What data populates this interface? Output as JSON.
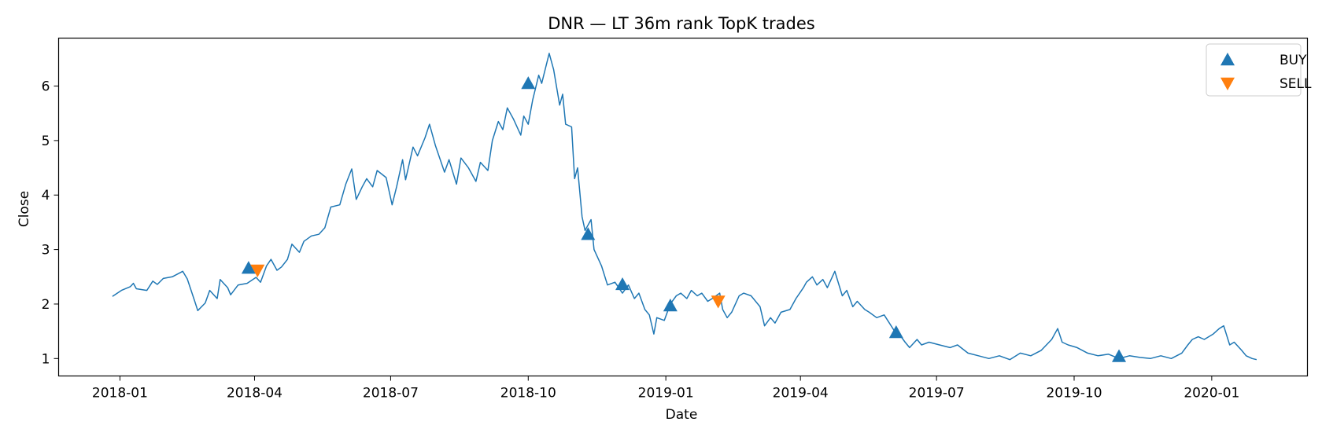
{
  "chart_data": {
    "type": "line",
    "title": "DNR — LT 36m rank TopK trades",
    "xlabel": "Date",
    "ylabel": "Close",
    "xlim": [
      "2017-11-21",
      "2020-03-05"
    ],
    "ylim": [
      0.68,
      6.88
    ],
    "x_ticks": [
      "2018-01",
      "2018-04",
      "2018-07",
      "2018-10",
      "2019-01",
      "2019-04",
      "2019-07",
      "2019-10",
      "2020-01"
    ],
    "y_ticks": [
      1,
      2,
      3,
      4,
      5,
      6
    ],
    "grid": false,
    "legend": {
      "position": "top-right",
      "entries": [
        "BUY",
        "SELL"
      ]
    },
    "colors": {
      "line": "#1f77b4",
      "buy": "#1f77b4",
      "sell": "#ff7f0e"
    },
    "series": [
      {
        "points": [
          [
            "2017-12-27",
            2.14
          ],
          [
            "2018-01-02",
            2.25
          ],
          [
            "2018-01-08",
            2.32
          ],
          [
            "2018-01-10",
            2.38
          ],
          [
            "2018-01-12",
            2.28
          ],
          [
            "2018-01-19",
            2.25
          ],
          [
            "2018-01-23",
            2.42
          ],
          [
            "2018-01-26",
            2.36
          ],
          [
            "2018-01-30",
            2.47
          ],
          [
            "2018-02-05",
            2.5
          ],
          [
            "2018-02-12",
            2.6
          ],
          [
            "2018-02-15",
            2.46
          ],
          [
            "2018-02-20",
            2.05
          ],
          [
            "2018-02-22",
            1.88
          ],
          [
            "2018-02-27",
            2.02
          ],
          [
            "2018-03-02",
            2.25
          ],
          [
            "2018-03-07",
            2.1
          ],
          [
            "2018-03-09",
            2.45
          ],
          [
            "2018-03-14",
            2.3
          ],
          [
            "2018-03-16",
            2.17
          ],
          [
            "2018-03-21",
            2.35
          ],
          [
            "2018-03-27",
            2.38
          ],
          [
            "2018-04-02",
            2.49
          ],
          [
            "2018-04-05",
            2.4
          ],
          [
            "2018-04-09",
            2.7
          ],
          [
            "2018-04-12",
            2.82
          ],
          [
            "2018-04-16",
            2.62
          ],
          [
            "2018-04-19",
            2.68
          ],
          [
            "2018-04-23",
            2.82
          ],
          [
            "2018-04-26",
            3.1
          ],
          [
            "2018-05-01",
            2.95
          ],
          [
            "2018-05-04",
            3.15
          ],
          [
            "2018-05-09",
            3.25
          ],
          [
            "2018-05-14",
            3.28
          ],
          [
            "2018-05-18",
            3.4
          ],
          [
            "2018-05-22",
            3.78
          ],
          [
            "2018-05-28",
            3.82
          ],
          [
            "2018-06-01",
            4.2
          ],
          [
            "2018-06-05",
            4.48
          ],
          [
            "2018-06-08",
            3.92
          ],
          [
            "2018-06-12",
            4.15
          ],
          [
            "2018-06-15",
            4.3
          ],
          [
            "2018-06-19",
            4.15
          ],
          [
            "2018-06-22",
            4.45
          ],
          [
            "2018-06-28",
            4.32
          ],
          [
            "2018-07-02",
            3.82
          ],
          [
            "2018-07-05",
            4.15
          ],
          [
            "2018-07-09",
            4.65
          ],
          [
            "2018-07-11",
            4.28
          ],
          [
            "2018-07-16",
            4.88
          ],
          [
            "2018-07-19",
            4.72
          ],
          [
            "2018-07-24",
            5.05
          ],
          [
            "2018-07-27",
            5.3
          ],
          [
            "2018-07-31",
            4.9
          ],
          [
            "2018-08-06",
            4.42
          ],
          [
            "2018-08-09",
            4.65
          ],
          [
            "2018-08-14",
            4.2
          ],
          [
            "2018-08-17",
            4.68
          ],
          [
            "2018-08-22",
            4.5
          ],
          [
            "2018-08-27",
            4.25
          ],
          [
            "2018-08-30",
            4.6
          ],
          [
            "2018-09-04",
            4.45
          ],
          [
            "2018-09-07",
            5.0
          ],
          [
            "2018-09-11",
            5.35
          ],
          [
            "2018-09-14",
            5.2
          ],
          [
            "2018-09-17",
            5.6
          ],
          [
            "2018-09-21",
            5.4
          ],
          [
            "2018-09-26",
            5.1
          ],
          [
            "2018-09-28",
            5.45
          ],
          [
            "2018-10-01",
            5.3
          ],
          [
            "2018-10-04",
            5.75
          ],
          [
            "2018-10-08",
            6.2
          ],
          [
            "2018-10-10",
            6.05
          ],
          [
            "2018-10-15",
            6.6
          ],
          [
            "2018-10-18",
            6.3
          ],
          [
            "2018-10-22",
            5.65
          ],
          [
            "2018-10-24",
            5.85
          ],
          [
            "2018-10-26",
            5.3
          ],
          [
            "2018-10-30",
            5.25
          ],
          [
            "2018-11-01",
            4.3
          ],
          [
            "2018-11-03",
            4.5
          ],
          [
            "2018-11-06",
            3.6
          ],
          [
            "2018-11-08",
            3.35
          ],
          [
            "2018-11-12",
            3.55
          ],
          [
            "2018-11-14",
            3.0
          ],
          [
            "2018-11-19",
            2.7
          ],
          [
            "2018-11-23",
            2.35
          ],
          [
            "2018-11-28",
            2.4
          ],
          [
            "2018-12-03",
            2.2
          ],
          [
            "2018-12-07",
            2.35
          ],
          [
            "2018-12-11",
            2.1
          ],
          [
            "2018-12-14",
            2.2
          ],
          [
            "2018-12-18",
            1.9
          ],
          [
            "2018-12-21",
            1.8
          ],
          [
            "2018-12-24",
            1.45
          ],
          [
            "2018-12-26",
            1.75
          ],
          [
            "2018-12-31",
            1.7
          ],
          [
            "2019-01-04",
            2.0
          ],
          [
            "2019-01-08",
            2.15
          ],
          [
            "2019-01-11",
            2.2
          ],
          [
            "2019-01-15",
            2.1
          ],
          [
            "2019-01-18",
            2.25
          ],
          [
            "2019-01-22",
            2.15
          ],
          [
            "2019-01-25",
            2.2
          ],
          [
            "2019-01-29",
            2.05
          ],
          [
            "2019-02-01",
            2.1
          ],
          [
            "2019-02-06",
            2.2
          ],
          [
            "2019-02-08",
            1.9
          ],
          [
            "2019-02-11",
            1.75
          ],
          [
            "2019-02-14",
            1.85
          ],
          [
            "2019-02-19",
            2.15
          ],
          [
            "2019-02-22",
            2.2
          ],
          [
            "2019-02-27",
            2.15
          ],
          [
            "2019-03-05",
            1.95
          ],
          [
            "2019-03-08",
            1.6
          ],
          [
            "2019-03-12",
            1.75
          ],
          [
            "2019-03-15",
            1.65
          ],
          [
            "2019-03-19",
            1.85
          ],
          [
            "2019-03-25",
            1.9
          ],
          [
            "2019-03-29",
            2.1
          ],
          [
            "2019-04-03",
            2.3
          ],
          [
            "2019-04-05",
            2.4
          ],
          [
            "2019-04-09",
            2.5
          ],
          [
            "2019-04-12",
            2.35
          ],
          [
            "2019-04-16",
            2.45
          ],
          [
            "2019-04-19",
            2.3
          ],
          [
            "2019-04-24",
            2.6
          ],
          [
            "2019-04-29",
            2.15
          ],
          [
            "2019-05-02",
            2.25
          ],
          [
            "2019-05-06",
            1.95
          ],
          [
            "2019-05-09",
            2.05
          ],
          [
            "2019-05-14",
            1.9
          ],
          [
            "2019-05-17",
            1.85
          ],
          [
            "2019-05-22",
            1.75
          ],
          [
            "2019-05-27",
            1.8
          ],
          [
            "2019-06-03",
            1.5
          ],
          [
            "2019-06-06",
            1.45
          ],
          [
            "2019-06-10",
            1.3
          ],
          [
            "2019-06-13",
            1.2
          ],
          [
            "2019-06-18",
            1.35
          ],
          [
            "2019-06-21",
            1.25
          ],
          [
            "2019-06-26",
            1.3
          ],
          [
            "2019-07-03",
            1.25
          ],
          [
            "2019-07-10",
            1.2
          ],
          [
            "2019-07-15",
            1.25
          ],
          [
            "2019-07-22",
            1.1
          ],
          [
            "2019-07-29",
            1.05
          ],
          [
            "2019-08-05",
            1.0
          ],
          [
            "2019-08-12",
            1.05
          ],
          [
            "2019-08-19",
            0.98
          ],
          [
            "2019-08-26",
            1.1
          ],
          [
            "2019-09-02",
            1.05
          ],
          [
            "2019-09-09",
            1.15
          ],
          [
            "2019-09-16",
            1.35
          ],
          [
            "2019-09-20",
            1.55
          ],
          [
            "2019-09-23",
            1.3
          ],
          [
            "2019-09-27",
            1.25
          ],
          [
            "2019-10-03",
            1.2
          ],
          [
            "2019-10-10",
            1.1
          ],
          [
            "2019-10-17",
            1.05
          ],
          [
            "2019-10-24",
            1.08
          ],
          [
            "2019-10-31",
            1.0
          ],
          [
            "2019-11-07",
            1.05
          ],
          [
            "2019-11-14",
            1.02
          ],
          [
            "2019-11-21",
            1.0
          ],
          [
            "2019-11-28",
            1.05
          ],
          [
            "2019-12-05",
            1.0
          ],
          [
            "2019-12-12",
            1.1
          ],
          [
            "2019-12-16",
            1.25
          ],
          [
            "2019-12-19",
            1.35
          ],
          [
            "2019-12-23",
            1.4
          ],
          [
            "2019-12-27",
            1.35
          ],
          [
            "2020-01-02",
            1.45
          ],
          [
            "2020-01-06",
            1.55
          ],
          [
            "2020-01-09",
            1.6
          ],
          [
            "2020-01-13",
            1.25
          ],
          [
            "2020-01-16",
            1.3
          ],
          [
            "2020-01-21",
            1.15
          ],
          [
            "2020-01-24",
            1.05
          ],
          [
            "2020-01-28",
            1.0
          ],
          [
            "2020-01-31",
            0.98
          ]
        ]
      }
    ],
    "markers": {
      "BUY": [
        [
          "2018-03-28",
          2.66
        ],
        [
          "2018-10-01",
          6.05
        ],
        [
          "2018-11-10",
          3.28
        ],
        [
          "2018-12-03",
          2.36
        ],
        [
          "2019-01-04",
          1.97
        ],
        [
          "2019-06-04",
          1.48
        ],
        [
          "2019-10-31",
          1.04
        ]
      ],
      "SELL": [
        [
          "2018-04-03",
          2.62
        ],
        [
          "2019-02-05",
          2.05
        ]
      ]
    }
  }
}
